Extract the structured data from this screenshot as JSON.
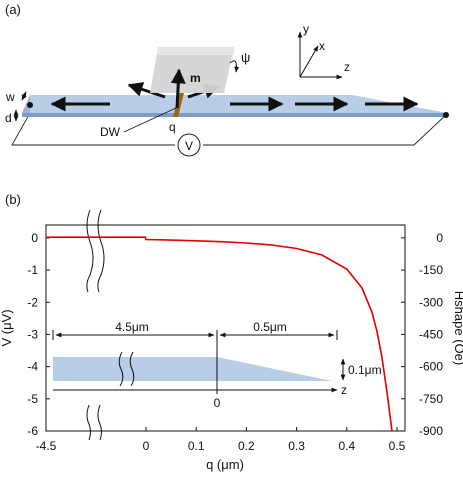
{
  "panel_a": {
    "label": "(a)",
    "labels": {
      "w": "w",
      "d": "d",
      "dw": "DW",
      "q": "q",
      "m": "m",
      "psi": "ψ",
      "voltmeter": "V"
    },
    "axes": {
      "x": "x",
      "y": "y",
      "z": "z"
    },
    "colors": {
      "wire": "#b8cde6",
      "wire_edge": "#6f8fba",
      "dw": "#a0660f",
      "plane": "#d4d4d4"
    }
  },
  "panel_b": {
    "label": "(b)",
    "inset": {
      "len1": "4.5μm",
      "len2": "0.5μm",
      "thickness": "0.1μm",
      "zero": "0",
      "z": "z"
    }
  },
  "chart_data": {
    "type": "line",
    "xlabel": "q (μm)",
    "ylabel": "V (μV)",
    "y2label": "Hshape (Oe)",
    "xticks": [
      "-4.5",
      "0",
      "0.1",
      "0.2",
      "0.3",
      "0.4",
      "0.5"
    ],
    "yticks": [
      "0",
      "-1",
      "-2",
      "-3",
      "-4",
      "-5",
      "-6"
    ],
    "y2ticks": [
      "0",
      "-150",
      "-300",
      "-450",
      "-600",
      "-750",
      "-900"
    ],
    "ylim": [
      -6,
      0.4
    ],
    "y2lim": [
      -900,
      60
    ],
    "line_color": "#e00000",
    "series": [
      {
        "x": [
          -4.5,
          -0.5,
          -0.03,
          0,
          0.05,
          0.1,
          0.15,
          0.2,
          0.25,
          0.3,
          0.35,
          0.4,
          0.43,
          0.45,
          0.46,
          0.47,
          0.48,
          0.49
        ],
        "y": [
          0.02,
          0.02,
          0.02,
          -0.05,
          -0.07,
          -0.09,
          -0.12,
          -0.16,
          -0.22,
          -0.33,
          -0.53,
          -0.97,
          -1.55,
          -2.3,
          -2.9,
          -3.7,
          -4.8,
          -6.0
        ]
      }
    ]
  }
}
